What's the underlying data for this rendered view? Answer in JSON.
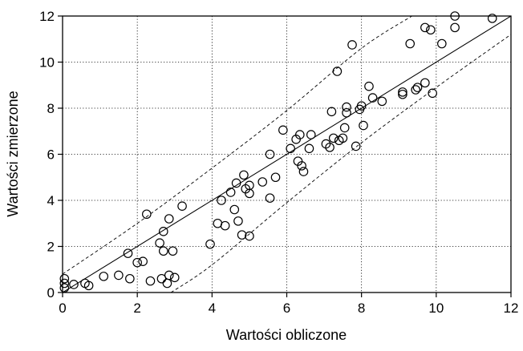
{
  "chart_data": {
    "type": "scatter",
    "title": "",
    "xlabel": "Wartości obliczone",
    "ylabel": "Wartości zmierzone",
    "xlim": [
      0,
      12
    ],
    "ylim": [
      0,
      12
    ],
    "x_ticks": [
      "0",
      "2",
      "4",
      "6",
      "8",
      "10",
      "12"
    ],
    "y_ticks": [
      "0",
      "2",
      "4",
      "6",
      "8",
      "10",
      "12"
    ],
    "grid": true,
    "grid_style": "dotted",
    "marker": "open-circle",
    "fit_line": {
      "slope": 1.0,
      "intercept": 0.0,
      "style": "solid"
    },
    "confidence_band": {
      "style": "dashed",
      "upper": [
        [
          0,
          0.8
        ],
        [
          2,
          3.0
        ],
        [
          4,
          5.4
        ],
        [
          6,
          7.9
        ],
        [
          8,
          10.6
        ],
        [
          9.35,
          12
        ]
      ],
      "lower": [
        [
          2.9,
          0
        ],
        [
          4,
          1.2
        ],
        [
          6,
          3.9
        ],
        [
          8,
          6.5
        ],
        [
          10,
          8.9
        ],
        [
          12,
          11.2
        ]
      ]
    },
    "series": [
      {
        "points": [
          [
            0.05,
            0.2
          ],
          [
            0.05,
            0.4
          ],
          [
            0.05,
            0.6
          ],
          [
            0.3,
            0.35
          ],
          [
            0.6,
            0.4
          ],
          [
            0.7,
            0.3
          ],
          [
            1.1,
            0.7
          ],
          [
            1.5,
            0.75
          ],
          [
            1.75,
            1.7
          ],
          [
            1.8,
            0.6
          ],
          [
            2.0,
            1.3
          ],
          [
            2.15,
            1.35
          ],
          [
            2.25,
            3.4
          ],
          [
            2.35,
            0.5
          ],
          [
            2.6,
            2.15
          ],
          [
            2.65,
            0.6
          ],
          [
            2.7,
            1.8
          ],
          [
            2.7,
            2.65
          ],
          [
            2.8,
            0.4
          ],
          [
            2.85,
            3.2
          ],
          [
            2.85,
            0.75
          ],
          [
            2.95,
            1.8
          ],
          [
            3.0,
            0.65
          ],
          [
            3.2,
            3.75
          ],
          [
            3.95,
            2.1
          ],
          [
            4.15,
            3.0
          ],
          [
            4.25,
            4.0
          ],
          [
            4.35,
            2.9
          ],
          [
            4.5,
            4.35
          ],
          [
            4.6,
            3.6
          ],
          [
            4.65,
            4.75
          ],
          [
            4.7,
            3.1
          ],
          [
            4.8,
            2.5
          ],
          [
            4.85,
            5.1
          ],
          [
            4.9,
            4.5
          ],
          [
            5.0,
            2.45
          ],
          [
            5.0,
            4.3
          ],
          [
            5.0,
            4.65
          ],
          [
            5.35,
            4.8
          ],
          [
            5.55,
            6.0
          ],
          [
            5.55,
            4.1
          ],
          [
            5.7,
            5.0
          ],
          [
            5.9,
            7.05
          ],
          [
            6.1,
            6.25
          ],
          [
            6.25,
            6.65
          ],
          [
            6.3,
            5.7
          ],
          [
            6.35,
            6.85
          ],
          [
            6.4,
            5.5
          ],
          [
            6.45,
            5.25
          ],
          [
            6.6,
            6.25
          ],
          [
            6.65,
            6.85
          ],
          [
            7.05,
            6.45
          ],
          [
            7.15,
            6.3
          ],
          [
            7.2,
            7.85
          ],
          [
            7.25,
            6.7
          ],
          [
            7.35,
            9.6
          ],
          [
            7.4,
            6.6
          ],
          [
            7.5,
            6.7
          ],
          [
            7.55,
            7.15
          ],
          [
            7.6,
            8.05
          ],
          [
            7.6,
            7.8
          ],
          [
            7.75,
            10.75
          ],
          [
            7.85,
            6.35
          ],
          [
            7.95,
            7.95
          ],
          [
            8.0,
            8.1
          ],
          [
            8.05,
            7.25
          ],
          [
            8.2,
            8.95
          ],
          [
            8.3,
            8.45
          ],
          [
            8.55,
            8.3
          ],
          [
            9.1,
            8.6
          ],
          [
            9.1,
            8.7
          ],
          [
            9.3,
            10.8
          ],
          [
            9.45,
            8.8
          ],
          [
            9.5,
            8.9
          ],
          [
            9.7,
            11.5
          ],
          [
            9.7,
            9.1
          ],
          [
            9.85,
            11.4
          ],
          [
            9.9,
            8.65
          ],
          [
            10.15,
            10.8
          ],
          [
            10.5,
            12.0
          ],
          [
            10.5,
            11.5
          ],
          [
            11.5,
            11.9
          ]
        ]
      }
    ]
  }
}
